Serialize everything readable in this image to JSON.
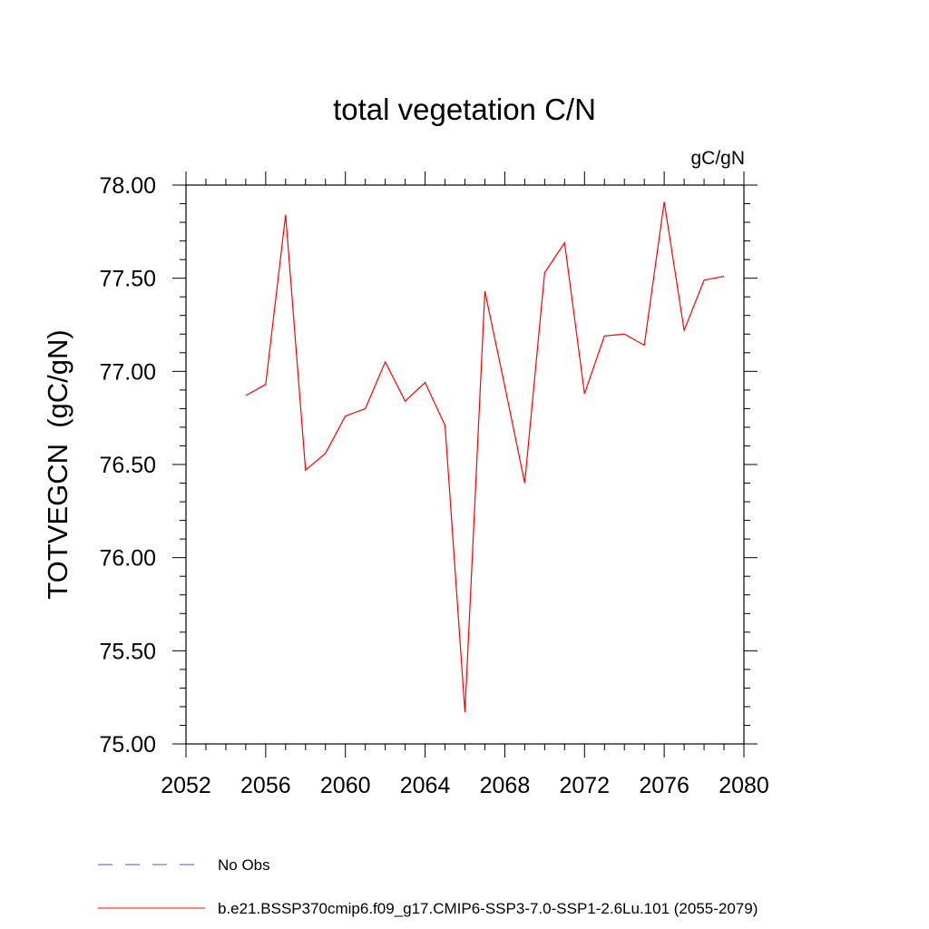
{
  "chart_data": {
    "type": "line",
    "title": "total vegetation C/N",
    "units_label": "gC/gN",
    "ylabel": "TOTVEGCN  (gC/gN)",
    "xlabel": "",
    "xlim": [
      2052,
      2080
    ],
    "ylim": [
      75.0,
      78.0
    ],
    "xticks": [
      "2052",
      "2056",
      "2060",
      "2064",
      "2068",
      "2072",
      "2076",
      "2080"
    ],
    "yticks": [
      "75.00",
      "75.50",
      "76.00",
      "76.50",
      "77.00",
      "77.50",
      "78.00"
    ],
    "grid": false,
    "legend_position": "bottom-left",
    "series": [
      {
        "name": "b.e21.BSSP370cmip6.f09_g17.CMIP6-SSP3-7.0-SSP1-2.6Lu.101 (2055-2079)",
        "color": "#ff0000",
        "style": "solid",
        "x": [
          2055,
          2056,
          2057,
          2058,
          2059,
          2060,
          2061,
          2062,
          2063,
          2064,
          2065,
          2066,
          2067,
          2068,
          2069,
          2070,
          2071,
          2072,
          2073,
          2074,
          2075,
          2076,
          2077,
          2078,
          2079
        ],
        "y": [
          76.87,
          76.93,
          77.84,
          76.47,
          76.56,
          76.76,
          76.8,
          77.05,
          76.84,
          76.94,
          76.71,
          75.17,
          77.43,
          76.92,
          76.4,
          77.53,
          77.69,
          76.88,
          77.19,
          77.2,
          77.14,
          77.91,
          77.22,
          77.49,
          77.51
        ]
      }
    ],
    "legend": [
      {
        "label": "No Obs",
        "color": "#5a4fcf",
        "style": "dashed"
      },
      {
        "label": "b.e21.BSSP370cmip6.f09_g17.CMIP6-SSP3-7.0-SSP1-2.6Lu.101 (2055-2079)",
        "color": "#ff0000",
        "style": "solid"
      }
    ]
  }
}
